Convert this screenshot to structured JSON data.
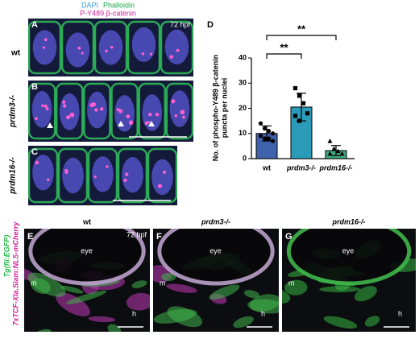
{
  "legend_labels": {
    "dapi": "DAPI",
    "phalloidin": "Phalloidin",
    "catenin": "P-Y489 β-catenin"
  },
  "panels_top": [
    {
      "letter": "A",
      "label": "wt",
      "stage": "72 hpf"
    },
    {
      "letter": "B",
      "label": "prdm3-/-"
    },
    {
      "letter": "C",
      "label": "prdm16-/-"
    }
  ],
  "chart_data": {
    "type": "bar",
    "letter": "D",
    "y_label": [
      "No. of phospho-Y489 β-catenin",
      "puncta per nuclei"
    ],
    "categories": [
      "wt",
      "prdm3-/-",
      "prdm16-/-"
    ],
    "values": [
      10,
      20.5,
      3.2
    ],
    "errors": [
      3,
      5.5,
      2
    ],
    "points": [
      [
        14,
        12,
        11,
        10,
        9,
        8,
        8,
        7
      ],
      [
        28,
        25,
        22,
        18,
        17,
        15
      ],
      [
        7,
        4,
        3,
        2,
        2
      ]
    ],
    "colors": [
      "#3f62ad",
      "#2b9cb8",
      "#3daa7e"
    ],
    "ylim": [
      0,
      40
    ],
    "yticks": [
      0,
      10,
      20,
      30,
      40
    ],
    "annotations": [
      {
        "text": "**",
        "from": 0,
        "to": 1
      },
      {
        "text": "**",
        "from": 0,
        "to": 2
      }
    ]
  },
  "panels_bottom": {
    "channels": [
      "Tg(fli:EGFP)",
      "7xTCF-Xla.Siam:NLS-mCherry"
    ],
    "stage": "72 hpf",
    "panels": [
      {
        "letter": "E",
        "label": "wt",
        "eye": "eye",
        "m": "m",
        "h": "h"
      },
      {
        "letter": "F",
        "label": "prdm3-/-",
        "eye": "eye",
        "m": "m",
        "h": "h"
      },
      {
        "letter": "G",
        "label": "prdm16-/-",
        "eye": "eye",
        "m": "m",
        "h": "h"
      }
    ]
  }
}
